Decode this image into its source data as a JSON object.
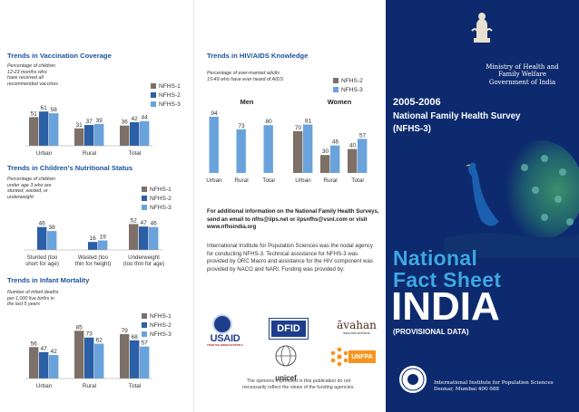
{
  "vaccination": {
    "title": "Trends in Vaccination Coverage",
    "desc": "Percentage of children\n12-23 months who\nhave received all\nrecommended vaccines",
    "legend": [
      "NFHS-1",
      "NFHS-2",
      "NFHS-3"
    ],
    "categories": [
      "Urban",
      "Rural",
      "Total"
    ]
  },
  "nutrition": {
    "title": "Trends in Children's Nutritional Status",
    "desc": "Percentage of children\nunder age 3 who are\nstunted, wasted, or\nunderweight",
    "legend": [
      "NFHS-1",
      "NFHS-2",
      "NFHS-3"
    ],
    "categories": [
      "Stunted (too\nshort for age)",
      "Wasted (too\nthin for height)",
      "Underweight\n(too thin for age)"
    ]
  },
  "mortality": {
    "title": "Trends in Infant Mortality",
    "desc": "Number of infant deaths\nper 1,000 live births in\nthe last 5 years",
    "legend": [
      "NFHS-1",
      "NFHS-2",
      "NFHS-3"
    ],
    "categories": [
      "Urban",
      "Rural",
      "Total"
    ]
  },
  "hiv": {
    "title": "Trends in HIV/AIDS Knowledge",
    "desc": "Percentage of ever-married adults\n15-49 who have ever heard of AIDS",
    "legend": [
      "NFHS-2",
      "NFHS-3"
    ],
    "group_men": "Men",
    "group_women": "Women",
    "categories": [
      "Urban",
      "Rural",
      "Total",
      "Urban",
      "Rural",
      "Total"
    ]
  },
  "info": {
    "contact": "For additional information on the National Family Health Surveys, send an email to nfhs@iips.net or iipsnfhs@vsnl.com or visit www.nfhsindia.org",
    "about": "International Institute for Population Sciences was the nodal agency for conducting NFHS-3. Technical assistance for NFHS-3 was provided by ORC Macro and assistance for the HIV component was provided by NACO and NARI. Funding was provided by:",
    "disclaimer": "The opinions expressed in this publication do not\nnecessarily reflect the views of the funding agencies.",
    "logos": {
      "usaid": "USAID",
      "usaid_sub": "FROM THE AMERICAN PEOPLE",
      "dfid": "DFID",
      "avahan": "āvahan",
      "avahan_sub": "INDIA AIDS INITIATIVE",
      "unicef": "unicef",
      "unfpa": "UNFPA"
    }
  },
  "cover": {
    "ministry": "Ministry of Health and\nFamily Welfare\nGovernment of India",
    "years": "2005-2006",
    "survey": "National Family Health Survey\n(NFHS-3)",
    "fact1": "National",
    "fact2": "Fact Sheet",
    "country": "INDIA",
    "provisional": "(PROVISIONAL DATA)",
    "institute": "International Institute for Population Sciences\nDeonar, Mumbai 400 088"
  },
  "colors": {
    "nfhs1": "#7d7068",
    "nfhs2": "#2b5fa6",
    "nfhs3": "#6aa3dc",
    "title_blue": "#1a4f9c",
    "cover_bg": "#0d2a6e",
    "cover_heading": "#3da7e8"
  },
  "chart_data": [
    {
      "type": "bar",
      "title": "Trends in Vaccination Coverage",
      "categories": [
        "Urban",
        "Rural",
        "Total"
      ],
      "series": [
        {
          "name": "NFHS-1",
          "values": [
            51,
            31,
            36
          ]
        },
        {
          "name": "NFHS-2",
          "values": [
            61,
            37,
            42
          ]
        },
        {
          "name": "NFHS-3",
          "values": [
            58,
            39,
            44
          ]
        }
      ],
      "grid": false,
      "legend": "right"
    },
    {
      "type": "bar",
      "title": "Trends in Children's Nutritional Status",
      "categories": [
        "Stunted (too short for age)",
        "Wasted (too thin for height)",
        "Underweight (too thin for age)"
      ],
      "series": [
        {
          "name": "NFHS-1",
          "values": [
            null,
            null,
            52
          ]
        },
        {
          "name": "NFHS-2",
          "values": [
            46,
            16,
            47
          ]
        },
        {
          "name": "NFHS-3",
          "values": [
            38,
            19,
            46
          ]
        }
      ],
      "grid": false,
      "legend": "right"
    },
    {
      "type": "bar",
      "title": "Trends in Infant Mortality",
      "categories": [
        "Urban",
        "Rural",
        "Total"
      ],
      "series": [
        {
          "name": "NFHS-1",
          "values": [
            56,
            85,
            79
          ]
        },
        {
          "name": "NFHS-2",
          "values": [
            47,
            73,
            68
          ]
        },
        {
          "name": "NFHS-3",
          "values": [
            42,
            62,
            57
          ]
        }
      ],
      "grid": false,
      "legend": "right"
    },
    {
      "type": "bar",
      "title": "Trends in HIV/AIDS Knowledge",
      "categories": [
        "Urban",
        "Rural",
        "Total",
        "Urban",
        "Rural",
        "Total"
      ],
      "groups": [
        "Men",
        "Men",
        "Men",
        "Women",
        "Women",
        "Women"
      ],
      "series": [
        {
          "name": "NFHS-2",
          "values": [
            null,
            null,
            null,
            70,
            30,
            40
          ]
        },
        {
          "name": "NFHS-3",
          "values": [
            94,
            73,
            80,
            81,
            46,
            57
          ]
        }
      ],
      "grid": false,
      "legend": "top-right"
    }
  ]
}
